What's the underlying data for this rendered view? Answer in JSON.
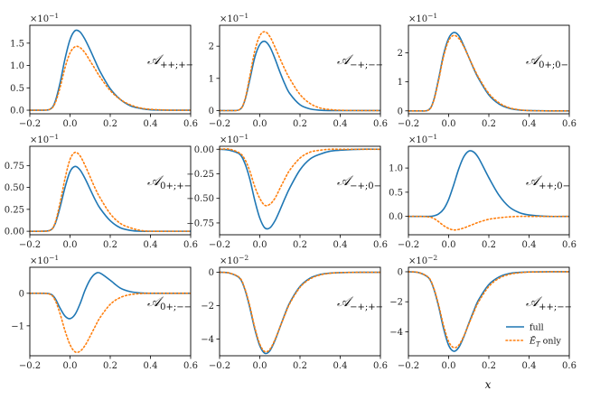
{
  "chart_data": {
    "type": "line",
    "xlabel": "x",
    "legend": {
      "placement": "lower-right of bottom-right panel",
      "entries": [
        {
          "name": "full",
          "color": "#1f77b4",
          "style": "solid"
        },
        {
          "name_main": "Ẽ",
          "name_sub": "T",
          "name_rest": " only",
          "color": "#ff7f0e",
          "style": "dotted"
        }
      ]
    },
    "colors": {
      "full": "#1f77b4",
      "only": "#ff7f0e"
    },
    "x": [
      -0.2,
      -0.15,
      -0.1,
      -0.075,
      -0.05,
      -0.025,
      0.0,
      0.025,
      0.05,
      0.075,
      0.1,
      0.125,
      0.15,
      0.2,
      0.25,
      0.3,
      0.35,
      0.4,
      0.5,
      0.6
    ],
    "panels": [
      {
        "label_main": "𝒜",
        "label_sub": "++;+−",
        "sci_base": "×10",
        "sci_exp": "−1",
        "xlim": [
          -0.2,
          0.6
        ],
        "ylim": [
          -0.08,
          1.9
        ],
        "xticks": [
          -0.2,
          0.0,
          0.2,
          0.4,
          0.6
        ],
        "xtick_labels": [
          "−0.2",
          "0.0",
          "0.2",
          "0.4",
          "0.6"
        ],
        "yticks": [
          0.0,
          0.5,
          1.0,
          1.5
        ],
        "ytick_labels": [
          "0.0",
          "0.5",
          "1.0",
          "1.5"
        ],
        "series": [
          {
            "key": "full",
            "values": [
              0,
              0,
              0.02,
              0.18,
              0.6,
              1.15,
              1.58,
              1.78,
              1.75,
              1.58,
              1.35,
              1.1,
              0.86,
              0.48,
              0.24,
              0.1,
              0.04,
              0.01,
              0,
              0
            ]
          },
          {
            "key": "only",
            "values": [
              0,
              0,
              0.02,
              0.15,
              0.5,
              0.95,
              1.28,
              1.42,
              1.4,
              1.28,
              1.1,
              0.92,
              0.74,
              0.44,
              0.24,
              0.12,
              0.05,
              0.02,
              0,
              0
            ]
          }
        ]
      },
      {
        "label_main": "𝒜",
        "label_sub": "−+;−−",
        "sci_base": "×10",
        "sci_exp": "−1",
        "xlim": [
          -0.2,
          0.6
        ],
        "ylim": [
          -0.1,
          2.65
        ],
        "xticks": [
          -0.2,
          0.0,
          0.2,
          0.4,
          0.6
        ],
        "xtick_labels": [
          "−0.2",
          "0.0",
          "0.2",
          "0.4",
          "0.6"
        ],
        "yticks": [
          0,
          1,
          2
        ],
        "ytick_labels": [
          "0",
          "1",
          "2"
        ],
        "series": [
          {
            "key": "full",
            "values": [
              0,
              0,
              0.03,
              0.3,
              0.95,
              1.65,
              2.05,
              2.15,
              1.98,
              1.62,
              1.2,
              0.82,
              0.52,
              0.18,
              0.05,
              0.01,
              0,
              0,
              0,
              0
            ]
          },
          {
            "key": "only",
            "values": [
              0,
              0,
              0.03,
              0.32,
              1.05,
              1.85,
              2.32,
              2.45,
              2.3,
              1.98,
              1.62,
              1.28,
              0.98,
              0.5,
              0.22,
              0.08,
              0.03,
              0.01,
              0,
              0
            ]
          }
        ]
      },
      {
        "label_main": "𝒜",
        "label_sub": "0+;0−",
        "sci_base": "×10",
        "sci_exp": "−1",
        "xlim": [
          -0.2,
          0.6
        ],
        "ylim": [
          -0.1,
          2.95
        ],
        "xticks": [
          -0.2,
          0.0,
          0.2,
          0.4,
          0.6
        ],
        "xtick_labels": [
          "−0.2",
          "0.0",
          "0.2",
          "0.4",
          "0.6"
        ],
        "yticks": [
          0,
          1,
          2
        ],
        "ytick_labels": [
          "0",
          "1",
          "2"
        ],
        "series": [
          {
            "key": "full",
            "values": [
              0,
              0,
              0.03,
              0.35,
              1.1,
              1.95,
              2.5,
              2.7,
              2.6,
              2.25,
              1.85,
              1.45,
              1.1,
              0.55,
              0.24,
              0.09,
              0.03,
              0.01,
              0,
              0
            ]
          },
          {
            "key": "only",
            "values": [
              0,
              0,
              0.03,
              0.33,
              1.05,
              1.88,
              2.42,
              2.6,
              2.5,
              2.22,
              1.85,
              1.48,
              1.14,
              0.6,
              0.28,
              0.11,
              0.04,
              0.01,
              0,
              0
            ]
          }
        ]
      },
      {
        "label_main": "𝒜",
        "label_sub": "0+;+−",
        "sci_base": "×10",
        "sci_exp": "−1",
        "xlim": [
          -0.2,
          0.6
        ],
        "ylim": [
          -0.04,
          0.97
        ],
        "xticks": [
          -0.2,
          0.0,
          0.2,
          0.4,
          0.6
        ],
        "xtick_labels": [
          "−0.2",
          "0.0",
          "0.2",
          "0.4",
          "0.6"
        ],
        "yticks": [
          0.0,
          0.25,
          0.5,
          0.75
        ],
        "ytick_labels": [
          "0.00",
          "0.25",
          "0.50",
          "0.75"
        ],
        "series": [
          {
            "key": "full",
            "values": [
              0,
              0,
              0.01,
              0.08,
              0.27,
              0.5,
              0.68,
              0.74,
              0.7,
              0.6,
              0.48,
              0.36,
              0.26,
              0.12,
              0.04,
              0.01,
              0,
              0,
              0,
              0
            ]
          },
          {
            "key": "only",
            "values": [
              0,
              0,
              0.01,
              0.09,
              0.32,
              0.6,
              0.82,
              0.9,
              0.86,
              0.75,
              0.62,
              0.49,
              0.38,
              0.2,
              0.09,
              0.04,
              0.01,
              0,
              0,
              0
            ]
          }
        ]
      },
      {
        "label_main": "𝒜",
        "label_sub": "−+;0−",
        "sci_base": "×10",
        "sci_exp": "−1",
        "xlim": [
          -0.2,
          0.6
        ],
        "ylim": [
          -0.87,
          0.03
        ],
        "xticks": [
          -0.2,
          0.0,
          0.2,
          0.4,
          0.6
        ],
        "xtick_labels": [
          "−0.2",
          "0.0",
          "0.2",
          "0.4",
          "0.6"
        ],
        "yticks": [
          0.0,
          -0.25,
          -0.5,
          -0.75
        ],
        "ytick_labels": [
          "0.00",
          "−0.25",
          "−0.50",
          "−0.75"
        ],
        "series": [
          {
            "key": "full",
            "values": [
              0,
              -0.01,
              -0.05,
              -0.14,
              -0.3,
              -0.52,
              -0.7,
              -0.8,
              -0.8,
              -0.73,
              -0.62,
              -0.5,
              -0.39,
              -0.21,
              -0.1,
              -0.05,
              -0.02,
              -0.01,
              0,
              0
            ]
          },
          {
            "key": "only",
            "values": [
              0,
              0,
              -0.04,
              -0.1,
              -0.22,
              -0.38,
              -0.5,
              -0.57,
              -0.56,
              -0.5,
              -0.4,
              -0.3,
              -0.21,
              -0.09,
              -0.03,
              -0.01,
              0,
              0,
              0,
              0
            ]
          }
        ]
      },
      {
        "label_main": "𝒜",
        "label_sub": "++;0−",
        "sci_base": "×10",
        "sci_exp": "−1",
        "xlim": [
          -0.2,
          0.6
        ],
        "ylim": [
          -0.38,
          1.45
        ],
        "xticks": [
          -0.2,
          0.0,
          0.2,
          0.4,
          0.6
        ],
        "xtick_labels": [
          "−0.2",
          "0.0",
          "0.2",
          "0.4",
          "0.6"
        ],
        "yticks": [
          0.0,
          0.5,
          1.0
        ],
        "ytick_labels": [
          "0.0",
          "0.5",
          "1.0"
        ],
        "series": [
          {
            "key": "full",
            "values": [
              0,
              0,
              0,
              0.01,
              0.05,
              0.15,
              0.35,
              0.65,
              0.98,
              1.23,
              1.35,
              1.33,
              1.2,
              0.8,
              0.44,
              0.2,
              0.08,
              0.03,
              0,
              0
            ]
          },
          {
            "key": "only",
            "values": [
              0,
              0,
              -0.01,
              -0.04,
              -0.11,
              -0.19,
              -0.25,
              -0.28,
              -0.27,
              -0.24,
              -0.2,
              -0.16,
              -0.12,
              -0.06,
              -0.03,
              -0.01,
              0,
              0,
              0,
              0
            ]
          }
        ]
      },
      {
        "label_main": "𝒜",
        "label_sub": "0+;−−",
        "sci_base": "×10",
        "sci_exp": "−1",
        "xlim": [
          -0.2,
          0.6
        ],
        "ylim": [
          -1.92,
          0.8
        ],
        "xticks": [
          -0.2,
          0.0,
          0.2,
          0.4,
          0.6
        ],
        "xtick_labels": [
          "−0.2",
          "0.0",
          "0.2",
          "0.4",
          "0.6"
        ],
        "yticks": [
          0,
          -1
        ],
        "ytick_labels": [
          "0",
          "−1"
        ],
        "series": [
          {
            "key": "full",
            "values": [
              0,
              0,
              -0.02,
              -0.15,
              -0.45,
              -0.7,
              -0.78,
              -0.65,
              -0.32,
              0.1,
              0.42,
              0.6,
              0.62,
              0.4,
              0.16,
              0.05,
              0.01,
              0,
              0,
              0
            ]
          },
          {
            "key": "only",
            "values": [
              0,
              0,
              -0.03,
              -0.2,
              -0.62,
              -1.15,
              -1.58,
              -1.8,
              -1.78,
              -1.6,
              -1.32,
              -1.02,
              -0.74,
              -0.34,
              -0.13,
              -0.04,
              -0.01,
              0,
              0,
              0
            ]
          }
        ]
      },
      {
        "label_main": "𝒜",
        "label_sub": "−+;+−",
        "sci_base": "×10",
        "sci_exp": "−2",
        "xlim": [
          -0.2,
          0.6
        ],
        "ylim": [
          -5.0,
          0.3
        ],
        "xticks": [
          -0.2,
          0.0,
          0.2,
          0.4,
          0.6
        ],
        "xtick_labels": [
          "−0.2",
          "0.0",
          "0.2",
          "0.4",
          "0.6"
        ],
        "yticks": [
          0,
          -2,
          -4
        ],
        "ytick_labels": [
          "0",
          "−2",
          "−4"
        ],
        "series": [
          {
            "key": "full",
            "values": [
              0,
              -0.05,
              -0.35,
              -1.0,
              -2.1,
              -3.4,
              -4.4,
              -4.85,
              -4.7,
              -4.1,
              -3.3,
              -2.5,
              -1.8,
              -0.85,
              -0.35,
              -0.13,
              -0.05,
              -0.02,
              0,
              0
            ]
          },
          {
            "key": "only",
            "values": [
              0,
              -0.05,
              -0.33,
              -0.95,
              -2.0,
              -3.3,
              -4.3,
              -4.75,
              -4.62,
              -4.05,
              -3.3,
              -2.55,
              -1.85,
              -0.9,
              -0.4,
              -0.16,
              -0.06,
              -0.02,
              0,
              0
            ]
          }
        ]
      },
      {
        "label_main": "𝒜",
        "label_sub": "++;−−",
        "sci_base": "×10",
        "sci_exp": "−2",
        "xlim": [
          -0.2,
          0.6
        ],
        "ylim": [
          -5.6,
          0.3
        ],
        "xticks": [
          -0.2,
          0.0,
          0.2,
          0.4,
          0.6
        ],
        "xtick_labels": [
          "−0.2",
          "0.0",
          "0.2",
          "0.4",
          "0.6"
        ],
        "yticks": [
          0,
          -2,
          -4
        ],
        "ytick_labels": [
          "0",
          "−2",
          "−4"
        ],
        "series": [
          {
            "key": "full",
            "values": [
              0,
              -0.05,
              -0.4,
              -1.1,
              -2.3,
              -3.8,
              -4.9,
              -5.3,
              -5.05,
              -4.35,
              -3.45,
              -2.6,
              -1.85,
              -0.85,
              -0.35,
              -0.12,
              -0.04,
              -0.01,
              0,
              0
            ]
          },
          {
            "key": "only",
            "values": [
              0,
              -0.05,
              -0.38,
              -1.05,
              -2.2,
              -3.6,
              -4.65,
              -5.05,
              -4.9,
              -4.3,
              -3.5,
              -2.7,
              -1.98,
              -0.98,
              -0.44,
              -0.18,
              -0.07,
              -0.02,
              0,
              0
            ]
          }
        ]
      }
    ]
  }
}
